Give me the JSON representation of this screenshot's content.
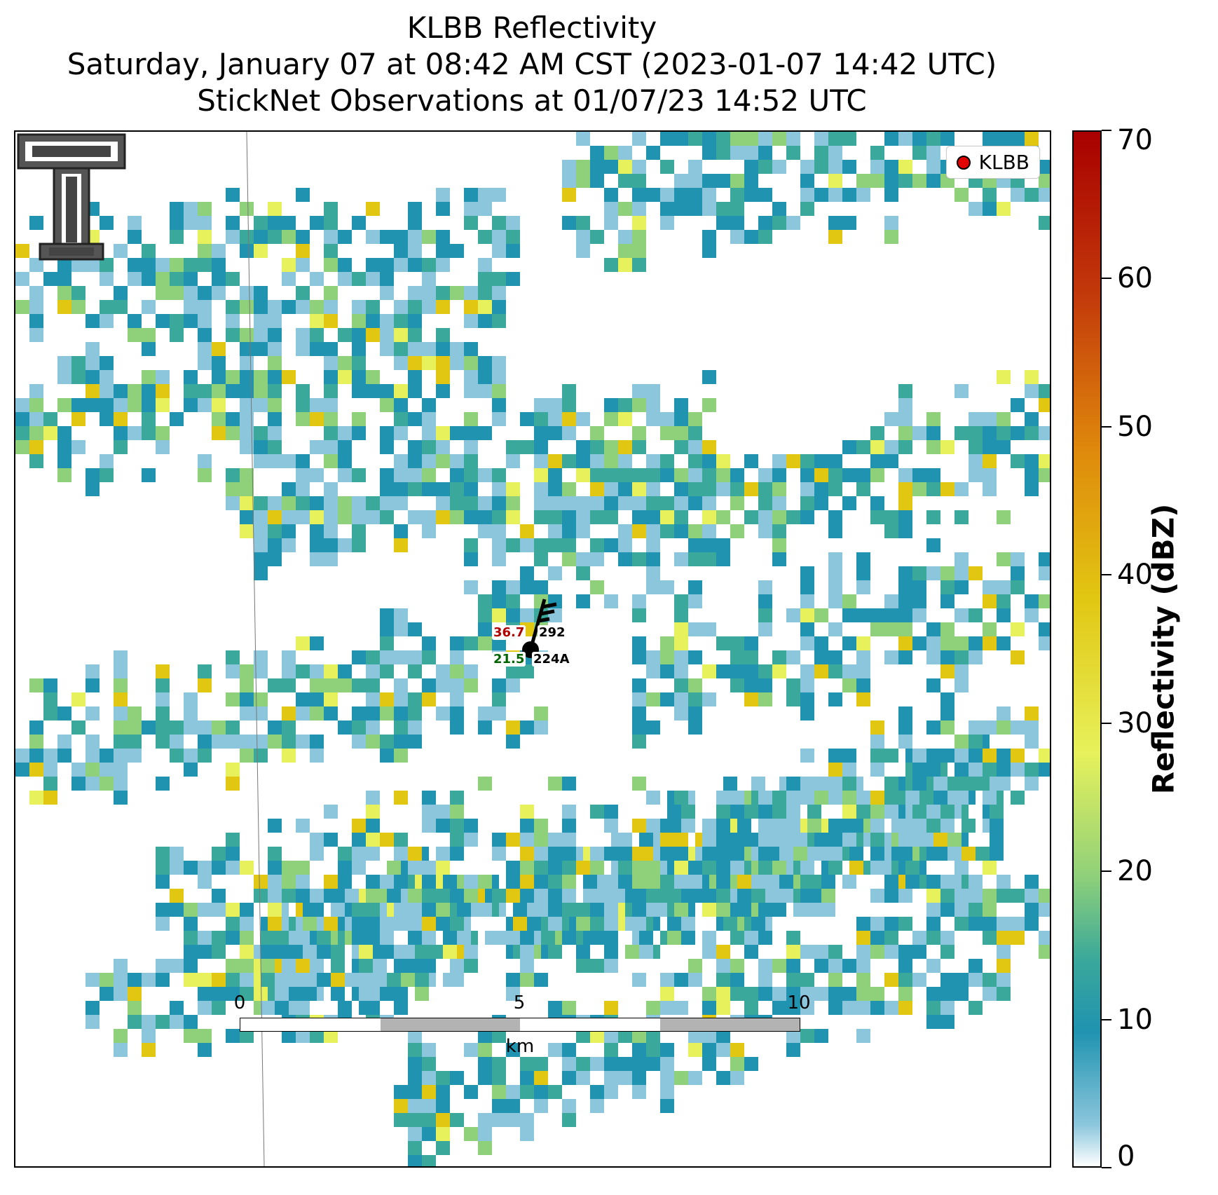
{
  "title": {
    "line1": "KLBB Reflectivity",
    "line2": "Saturday, January 07 at 08:42 AM CST (2023-01-07 14:42 UTC)",
    "line3": "StickNet Observations at 01/07/23 14:52 UTC"
  },
  "legend": {
    "label": "KLBB",
    "marker_color": "#e00000"
  },
  "station": {
    "id": "224A",
    "temperature": "36.7",
    "dewpoint": "21.5",
    "pressure": "292",
    "temperature_color": "#b00000",
    "dewpoint_color": "#006400"
  },
  "scale_bar": {
    "labels": [
      "0",
      "5",
      "10"
    ],
    "unit": "km"
  },
  "colorbar": {
    "title": "Reflectivity (dBZ)",
    "ticks": [
      "0",
      "10",
      "20",
      "30",
      "40",
      "50",
      "60",
      "70"
    ],
    "min": 0,
    "max": 70
  },
  "colors": {
    "low": "#8bc6dc",
    "teal": "#2093b0",
    "green": "#3aa89a",
    "light_green": "#8fd07a",
    "yellow": "#e7f15b",
    "orange": "#e1c612"
  }
}
